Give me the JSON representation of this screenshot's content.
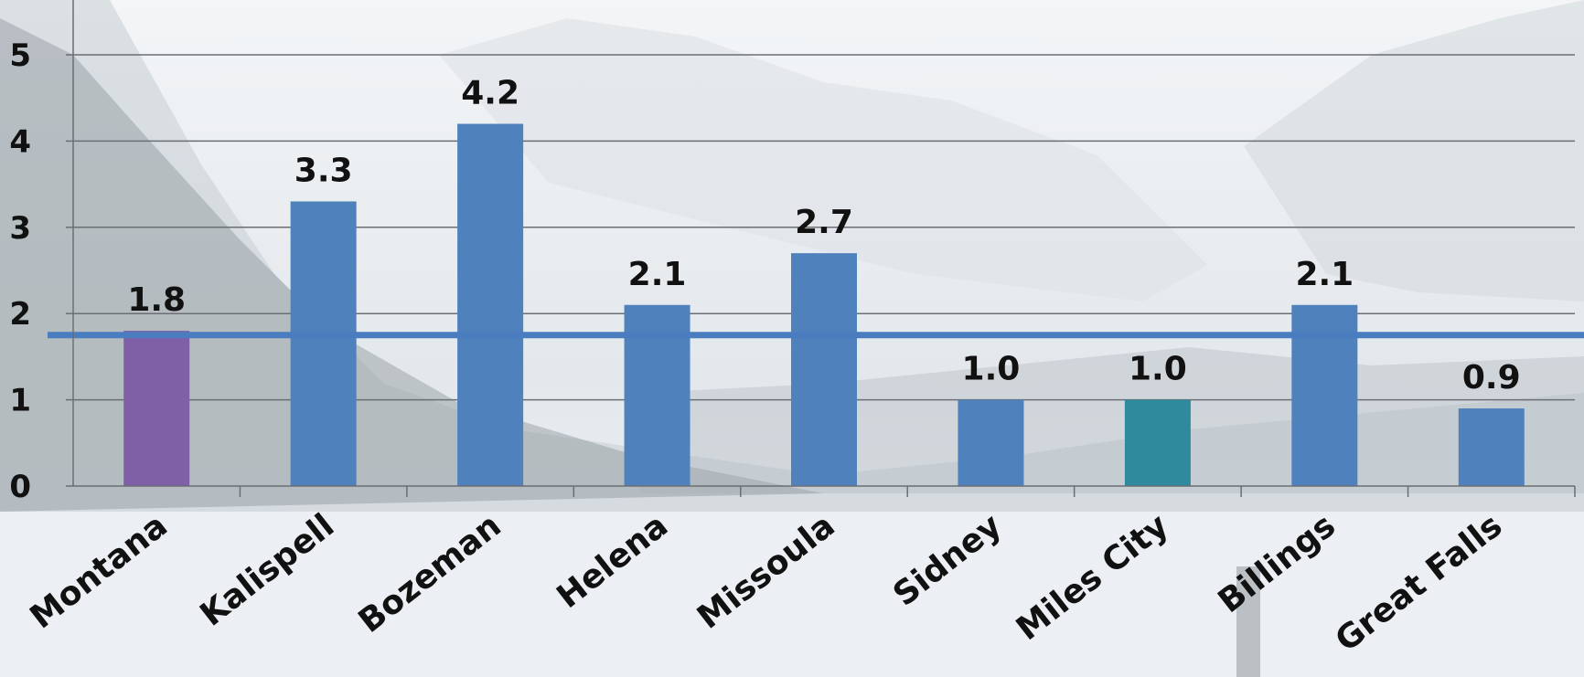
{
  "chart_data": {
    "type": "bar",
    "title": "",
    "xlabel": "",
    "ylabel": "",
    "categories": [
      "Montana",
      "Kalispell",
      "Bozeman",
      "Helena",
      "Missoula",
      "Sidney",
      "Miles City",
      "Billings",
      "Great Falls"
    ],
    "values": [
      1.8,
      3.3,
      4.2,
      2.1,
      2.7,
      1.0,
      1.0,
      2.1,
      0.9
    ],
    "value_labels": [
      "1.8",
      "3.3",
      "4.2",
      "2.1",
      "2.7",
      "1.0",
      "1.0",
      "2.1",
      "0.9"
    ],
    "bar_colors": [
      "#7f5fa6",
      "#4f81bd",
      "#4f81bd",
      "#4f81bd",
      "#4f81bd",
      "#4f81bd",
      "#2e8a9c",
      "#4f81bd",
      "#4f81bd"
    ],
    "reference_line": {
      "value": 1.75,
      "color": "#4a7cc0"
    },
    "ylim": [
      0,
      5
    ],
    "yticks": [
      "0",
      "1",
      "2",
      "3",
      "4",
      "5"
    ],
    "grid": true,
    "background": "winter mountain landscape photograph"
  }
}
